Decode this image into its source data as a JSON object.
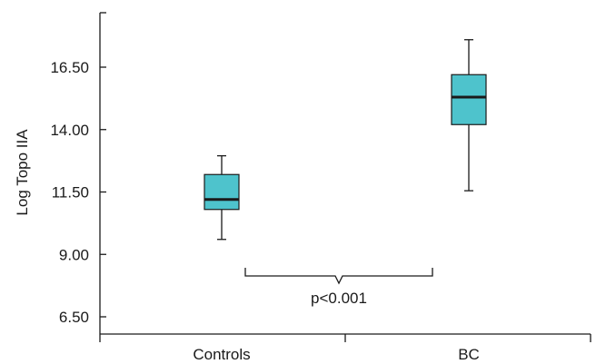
{
  "chart_data": {
    "type": "boxplot",
    "ylabel": "Log Topo IIA",
    "ylim": [
      5.8,
      18.3
    ],
    "yticks": [
      "6.50",
      "9.00",
      "11.50",
      "14.00",
      "16.50"
    ],
    "categories": [
      "Controls",
      "BC"
    ],
    "boxes": [
      {
        "category": "Controls",
        "whisker_low": 9.6,
        "q1": 10.8,
        "median": 11.2,
        "q3": 12.2,
        "whisker_high": 12.95
      },
      {
        "category": "BC",
        "whisker_low": 11.55,
        "q1": 14.2,
        "median": 15.3,
        "q3": 16.2,
        "whisker_high": 17.6
      }
    ],
    "annotation": "p<0.001",
    "colors": {
      "box_fill": "#4ec3cc",
      "stroke": "#1a1a1a"
    }
  }
}
